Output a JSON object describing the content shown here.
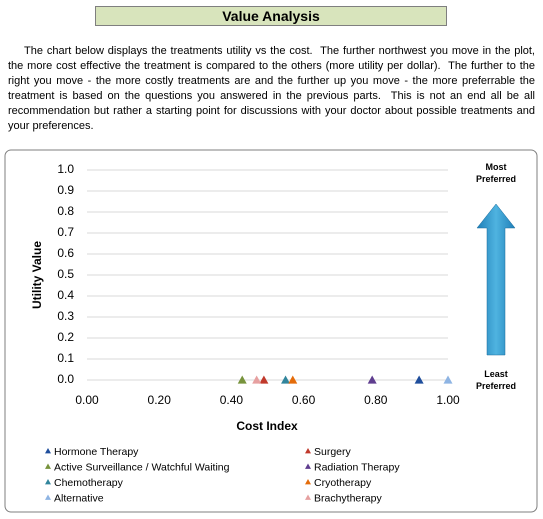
{
  "header": {
    "title": "Value Analysis"
  },
  "paragraph": "The chart below displays the treatments utility vs the cost.  The further northwest you move in the plot, the more cost effective the treatment is compared to the others (more utility per dollar).  The further to the right you move - the more costly treatments are and the further up you move - the more preferrable the treatment is based on the questions you answered in the previous parts.  This is not an end all be all recommendation but rather a starting point for discussions with your doctor about possible treatments and your preferences.",
  "chart_data": {
    "type": "scatter",
    "x_label": "Cost Index",
    "y_label": "Utility Value",
    "xlim": [
      0,
      1
    ],
    "ylim": [
      0,
      1
    ],
    "xticks": [
      {
        "value": 0,
        "label": "0.00"
      },
      {
        "value": 0.2,
        "label": "0.20"
      },
      {
        "value": 0.4,
        "label": "0.40"
      },
      {
        "value": 0.6,
        "label": "0.60"
      },
      {
        "value": 0.8,
        "label": "0.80"
      },
      {
        "value": 1,
        "label": "1.00"
      }
    ],
    "yticks": [
      {
        "value": 0,
        "label": "0.0"
      },
      {
        "value": 0.1,
        "label": "0.1"
      },
      {
        "value": 0.2,
        "label": "0.2"
      },
      {
        "value": 0.3,
        "label": "0.3"
      },
      {
        "value": 0.4,
        "label": "0.4"
      },
      {
        "value": 0.5,
        "label": "0.5"
      },
      {
        "value": 0.6,
        "label": "0.6"
      },
      {
        "value": 0.7,
        "label": "0.7"
      },
      {
        "value": 0.8,
        "label": "0.8"
      },
      {
        "value": 0.9,
        "label": "0.9"
      },
      {
        "value": 1,
        "label": "1.0"
      }
    ],
    "grid": true,
    "annotations": [
      "Most Preferred",
      "Least Preferred"
    ],
    "series": [
      {
        "name": "Hormone Therapy",
        "color": "#1f4e9c",
        "x": [
          0.92
        ],
        "values": [
          0
        ]
      },
      {
        "name": "Surgery",
        "color": "#c0392b",
        "x": [
          0.49
        ],
        "values": [
          0
        ]
      },
      {
        "name": "Active Surveillance / Watchful Waiting",
        "color": "#77933c",
        "x": [
          0.43
        ],
        "values": [
          0
        ]
      },
      {
        "name": "Radiation Therapy",
        "color": "#5f3d8f",
        "x": [
          0.79
        ],
        "values": [
          0
        ]
      },
      {
        "name": "Chemotherapy",
        "color": "#31859c",
        "x": [
          0.55
        ],
        "values": [
          0
        ]
      },
      {
        "name": "Cryotherapy",
        "color": "#e46c0a",
        "x": [
          0.57
        ],
        "values": [
          0
        ]
      },
      {
        "name": "Alternative",
        "color": "#8eb4e3",
        "x": [
          1
        ],
        "values": [
          0
        ]
      },
      {
        "name": "Brachytherapy",
        "color": "#e6a0a0",
        "x": [
          0.47
        ],
        "values": [
          0
        ]
      }
    ]
  }
}
